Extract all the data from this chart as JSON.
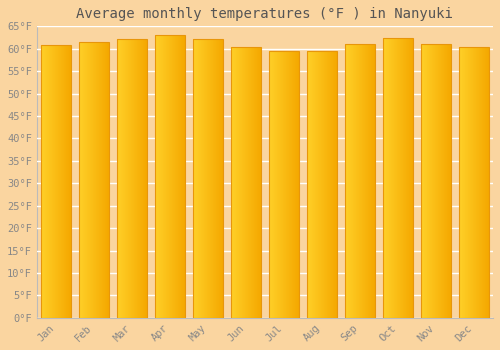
{
  "title": "Average monthly temperatures (°F ) in Nanyuki",
  "categories": [
    "Jan",
    "Feb",
    "Mar",
    "Apr",
    "May",
    "Jun",
    "Jul",
    "Aug",
    "Sep",
    "Oct",
    "Nov",
    "Dec"
  ],
  "values": [
    60.8,
    61.5,
    62.2,
    63.0,
    62.1,
    60.3,
    59.5,
    59.5,
    61.0,
    62.4,
    61.0,
    60.3
  ],
  "ylim": [
    0,
    65
  ],
  "yticks": [
    0,
    5,
    10,
    15,
    20,
    25,
    30,
    35,
    40,
    45,
    50,
    55,
    60,
    65
  ],
  "bar_color_left": "#FFD028",
  "bar_color_right": "#F5A800",
  "bar_edge_color": "#E8960A",
  "background_color": "#FAD5A0",
  "plot_bg_color": "#FAD5A0",
  "grid_color": "#FFFFFF",
  "title_fontsize": 10,
  "tick_fontsize": 7.5,
  "tick_color": "#888888",
  "font_family": "monospace"
}
